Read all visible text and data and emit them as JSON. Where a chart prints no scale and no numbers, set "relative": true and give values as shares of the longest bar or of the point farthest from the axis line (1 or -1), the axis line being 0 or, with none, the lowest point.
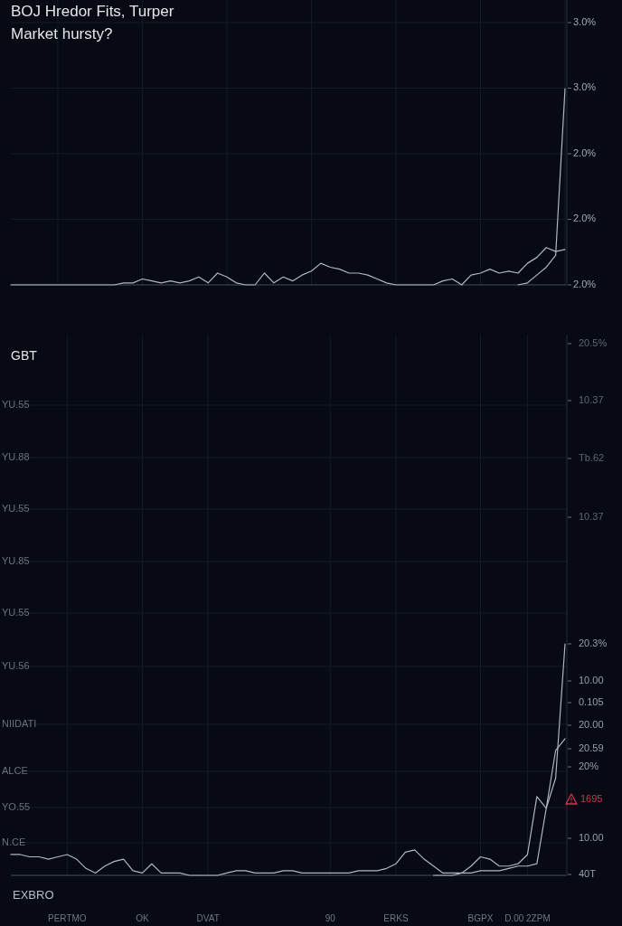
{
  "chart_data": [
    {
      "type": "line",
      "title": "BOJ Hredor Fits, Turper Market hursty?",
      "relative": true,
      "grid": true,
      "categories": [
        null,
        null,
        null,
        null,
        null,
        null,
        null,
        null,
        null,
        null,
        null,
        null,
        null,
        null,
        null,
        null,
        null,
        null,
        null,
        null,
        null,
        null,
        null,
        null,
        null,
        null,
        null,
        null,
        null,
        null,
        null,
        null,
        null,
        null,
        null,
        null,
        null,
        null,
        null,
        null,
        null,
        null,
        null,
        null,
        null,
        null,
        null,
        null,
        null,
        null,
        null,
        null,
        null,
        null,
        null,
        null,
        null,
        null,
        null,
        null
      ],
      "series": [
        {
          "color": "#b0b5bf",
          "values": [
            0,
            0,
            0,
            0,
            0,
            0,
            0,
            0,
            0,
            0,
            0,
            0,
            0.01,
            0.01,
            0.03,
            0.02,
            0.01,
            0.02,
            0.01,
            0.02,
            0.04,
            0.01,
            0.06,
            0.04,
            0.01,
            0,
            0,
            0.06,
            0.01,
            0.04,
            0.02,
            0.05,
            0.07,
            0.11,
            0.09,
            0.08,
            0.06,
            0.06,
            0.05,
            0.03,
            0.01,
            0,
            0,
            0,
            0,
            0,
            0.02,
            0.03,
            0,
            0.05,
            0.06,
            0.08,
            0.06,
            0.07,
            0.06,
            0.11,
            0.14,
            0.19,
            0.17,
            0.18
          ]
        },
        {
          "color": "#b0b5bf",
          "values": [
            null,
            null,
            null,
            null,
            null,
            null,
            null,
            null,
            null,
            null,
            null,
            null,
            null,
            null,
            null,
            null,
            null,
            null,
            null,
            null,
            null,
            null,
            null,
            null,
            null,
            null,
            null,
            null,
            null,
            null,
            null,
            null,
            null,
            null,
            null,
            null,
            null,
            null,
            null,
            null,
            null,
            null,
            null,
            null,
            null,
            null,
            null,
            null,
            null,
            null,
            null,
            null,
            null,
            null,
            0,
            0.01,
            0.05,
            0.09,
            0.15,
            1
          ]
        }
      ],
      "annotations": [
        "3.0%",
        "3.0%",
        "2.0%",
        "2.0%",
        "2.0%"
      ]
    },
    {
      "type": "line",
      "title": "GBT",
      "xlabel": "EXBRO",
      "relative": true,
      "grid": true,
      "categories": [
        null,
        null,
        null,
        null,
        null,
        null,
        "PERTMO",
        null,
        null,
        null,
        null,
        null,
        null,
        null,
        "OK",
        null,
        null,
        null,
        null,
        null,
        null,
        "DVAT",
        null,
        null,
        null,
        null,
        null,
        null,
        null,
        null,
        null,
        null,
        null,
        null,
        "90",
        null,
        null,
        null,
        null,
        null,
        null,
        "ERKS",
        null,
        null,
        null,
        null,
        null,
        null,
        null,
        null,
        "BGPX",
        null,
        null,
        null,
        null,
        "D.00 2ZPM",
        null,
        null,
        null,
        null
      ],
      "series": [
        {
          "color": "#b0b5bf",
          "values": [
            0.09,
            0.09,
            0.08,
            0.08,
            0.07,
            0.08,
            0.09,
            0.07,
            0.03,
            0.01,
            0.04,
            0.06,
            0.07,
            0.02,
            0.01,
            0.05,
            0.01,
            0.01,
            0.01,
            0,
            0,
            0,
            0,
            0.01,
            0.02,
            0.02,
            0.01,
            0.01,
            0.01,
            0.02,
            0.02,
            0.01,
            0.01,
            0.01,
            0.01,
            0.01,
            0.01,
            0.02,
            0.02,
            0.02,
            0.03,
            0.05,
            0.1,
            0.11,
            0.07,
            0.04,
            0.01,
            0.01,
            0.01,
            0.04,
            0.08,
            0.07,
            0.04,
            0.04,
            0.05,
            0.09,
            0.34,
            0.29,
            0.42,
            1
          ]
        },
        {
          "color": "#b0b5bf",
          "values": [
            null,
            null,
            null,
            null,
            null,
            null,
            null,
            null,
            null,
            null,
            null,
            null,
            null,
            null,
            null,
            null,
            null,
            null,
            null,
            null,
            null,
            null,
            null,
            null,
            null,
            null,
            null,
            null,
            null,
            null,
            null,
            null,
            null,
            null,
            null,
            null,
            null,
            null,
            null,
            null,
            null,
            null,
            null,
            null,
            null,
            0,
            0,
            0,
            0.01,
            0.01,
            0.02,
            0.02,
            0.02,
            0.03,
            0.04,
            0.04,
            0.05,
            0.29,
            0.54,
            0.59
          ]
        }
      ],
      "annotations": [
        "YU.55",
        "YU.88",
        "YU.55",
        "YU.85",
        "YU.55",
        "YU.56",
        "NIIDATI",
        "ALCE",
        "YO.55",
        "N.CE",
        "20.5%",
        "10.37",
        "Tb.62",
        "10.37",
        "20.3%",
        "10.00",
        "0.105",
        "20.00",
        "20.59",
        "20%",
        "1695",
        "10.00",
        "40T"
      ]
    }
  ]
}
